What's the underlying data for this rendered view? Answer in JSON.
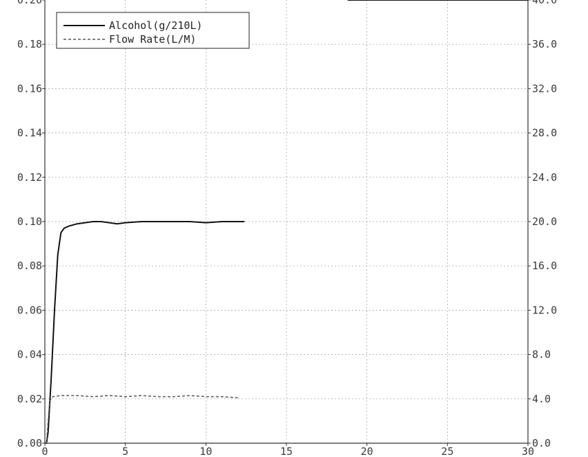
{
  "chart_data": {
    "type": "line",
    "title": "",
    "xlabel": "",
    "ylabel": "",
    "y2label": "",
    "xlim": [
      0,
      30
    ],
    "ylim": [
      0,
      0.2
    ],
    "y2lim": [
      0,
      40
    ],
    "xticks": [
      "0",
      "5",
      "10",
      "15",
      "20",
      "25",
      "30"
    ],
    "yticks": [
      "0.00",
      "0.02",
      "0.04",
      "0.06",
      "0.08",
      "0.10",
      "0.12",
      "0.14",
      "0.16",
      "0.18",
      "0.20"
    ],
    "y2ticks": [
      "0.0",
      "4.0",
      "8.0",
      "12.0",
      "16.0",
      "20.0",
      "24.0",
      "28.0",
      "32.0",
      "36.0",
      "40.0"
    ],
    "grid": true,
    "legend_position": "top-left",
    "series": [
      {
        "name": "Alcohol(g/210L)",
        "axis": "left",
        "style": "solid",
        "color": "#111111",
        "x": [
          0,
          0.1,
          0.2,
          0.4,
          0.6,
          0.8,
          1.0,
          1.2,
          1.5,
          2.0,
          2.5,
          3.0,
          3.5,
          4.0,
          4.5,
          5.0,
          6.0,
          7.0,
          8.0,
          9.0,
          10.0,
          11.0,
          12.0,
          12.4
        ],
        "y": [
          0.0,
          0.0,
          0.005,
          0.03,
          0.06,
          0.085,
          0.095,
          0.097,
          0.098,
          0.099,
          0.0995,
          0.1,
          0.1,
          0.0995,
          0.099,
          0.0995,
          0.1,
          0.1,
          0.1,
          0.1,
          0.0995,
          0.1,
          0.1,
          0.1
        ]
      },
      {
        "name": "Flow Rate(L/M)",
        "axis": "right",
        "style": "dashed",
        "color": "#555555",
        "x": [
          0,
          0.1,
          0.3,
          0.5,
          1,
          2,
          3,
          4,
          5,
          6,
          7,
          8,
          9,
          10,
          11,
          12
        ],
        "y": [
          0,
          0,
          3.8,
          4.2,
          4.3,
          4.3,
          4.2,
          4.3,
          4.2,
          4.3,
          4.2,
          4.2,
          4.3,
          4.2,
          4.2,
          4.1
        ]
      },
      {
        "name": "",
        "axis": "right",
        "style": "solid",
        "color": "#111111",
        "x": [
          18.8,
          30
        ],
        "y": [
          40,
          40
        ]
      }
    ]
  }
}
